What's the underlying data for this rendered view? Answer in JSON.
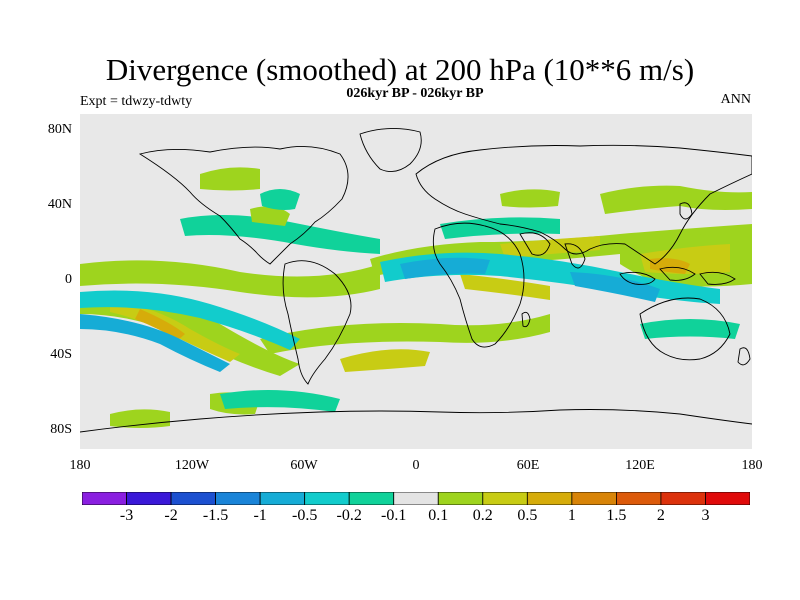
{
  "title": "Divergence (smoothed) at 200 hPa (10**6 m/s)",
  "subtitle": "026kyr BP - 026kyr BP",
  "expt_label": "Expt = tdwzy-tdwty",
  "season": "ANN",
  "lat_labels": [
    "80N",
    "40N",
    "0",
    "40S",
    "80S"
  ],
  "lon_labels": [
    "180",
    "120W",
    "60W",
    "0",
    "60E",
    "120E",
    "180"
  ],
  "colorbar": {
    "colors": [
      "#8a1fe0",
      "#3a18d8",
      "#1c50d0",
      "#1a84d8",
      "#16acd6",
      "#12cccc",
      "#10d29a",
      "#e4e4e4",
      "#9ed41e",
      "#c8cc14",
      "#d6ac0a",
      "#d88408",
      "#dc5a0a",
      "#dc320c",
      "#e00a0a"
    ],
    "labels": [
      "-3",
      "-2",
      "-1.5",
      "-1",
      "-0.5",
      "-0.2",
      "-0.1",
      "0.1",
      "0.2",
      "0.5",
      "1",
      "1.5",
      "2",
      "3"
    ]
  },
  "colors": {
    "background": "#e8e8e8",
    "coast": "#000000"
  }
}
